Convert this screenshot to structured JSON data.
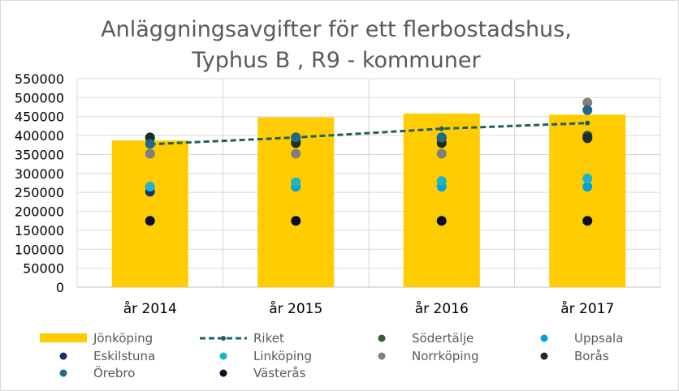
{
  "chart_data": {
    "type": "bar",
    "title": [
      "Anläggningsavgifter för ett flerbostadshus,",
      "Typhus B , R9 - kommuner"
    ],
    "categories": [
      "år 2014",
      "år 2015",
      "år 2016",
      "år 2017"
    ],
    "ylim": [
      0,
      550000
    ],
    "yticks": [
      "550000",
      "500000",
      "450000",
      "400000",
      "350000",
      "300000",
      "250000",
      "200000",
      "150000",
      "100000",
      "50000",
      "0"
    ],
    "grid": true,
    "legend_placement": "bottom",
    "bar_series": {
      "name": "Jönköping",
      "color": "#FFCC00",
      "values": [
        387000,
        448000,
        458000,
        455000
      ]
    },
    "line_series": {
      "name": "Riket",
      "color": "#1F5F5F",
      "style": "dashed",
      "values": [
        377000,
        395000,
        418000,
        433000
      ]
    },
    "scatter_series": [
      {
        "name": "Södertälje",
        "color": "#2E5E3A",
        "values": [
          393000,
          385000,
          395000,
          400000
        ]
      },
      {
        "name": "Uppsala",
        "color": "#00A3D9",
        "values": [
          265000,
          265000,
          265000,
          265000
        ]
      },
      {
        "name": "Eskilstuna",
        "color": "#1A2F6E",
        "values": [
          252000,
          395000,
          393000,
          395000
        ]
      },
      {
        "name": "Linköping",
        "color": "#1FB3C8",
        "values": [
          265000,
          277000,
          280000,
          287000
        ]
      },
      {
        "name": "Norrköping",
        "color": "#7F7F7F",
        "values": [
          352000,
          352000,
          352000,
          487000
        ]
      },
      {
        "name": "Borås",
        "color": "#1B2E1F",
        "values": [
          395000,
          380000,
          380000,
          393000
        ]
      },
      {
        "name": "Örebro",
        "color": "#1F6A8A",
        "values": [
          378000,
          395000,
          395000,
          467000
        ]
      },
      {
        "name": "Västerås",
        "color": "#0B0B2B",
        "values": [
          175000,
          175000,
          175000,
          175000
        ]
      }
    ]
  }
}
